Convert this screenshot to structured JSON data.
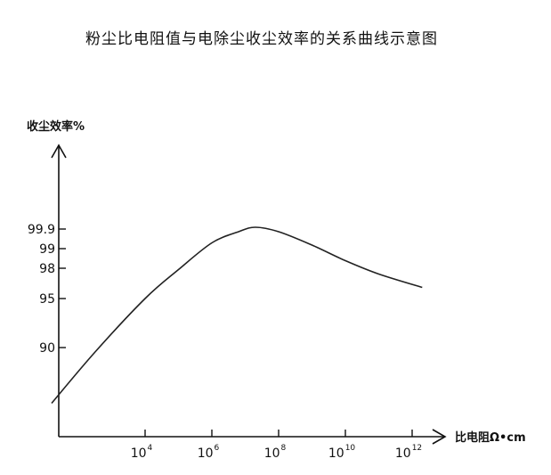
{
  "chart_data": {
    "type": "line",
    "title": "粉尘比电阻值与电除尘收尘效率的关系曲线示意图",
    "ylabel": "收尘效率%",
    "xlabel": "比电阻Ω•cm",
    "x_ticks": [
      {
        "base": "10",
        "exp": "4",
        "value": 4
      },
      {
        "base": "10",
        "exp": "6",
        "value": 6
      },
      {
        "base": "10",
        "exp": "8",
        "value": 8
      },
      {
        "base": "10",
        "exp": "10",
        "value": 10
      },
      {
        "base": "10",
        "exp": "12",
        "value": 12
      }
    ],
    "y_ticks": [
      "99.9",
      "99",
      "98",
      "95",
      "90"
    ],
    "x_scale": "log10",
    "series": [
      {
        "x_log10": [
          1.2,
          2.5,
          4.0,
          5.0,
          6.0,
          6.8,
          7.3,
          8.0,
          9.0,
          10.0,
          11.0,
          12.3
        ],
        "y_pos": [
          0.15,
          0.38,
          0.62,
          0.75,
          0.87,
          0.92,
          0.94,
          0.92,
          0.86,
          0.79,
          0.73,
          0.67
        ]
      }
    ],
    "grid": false,
    "legend": "none",
    "line_color": "#222222"
  }
}
